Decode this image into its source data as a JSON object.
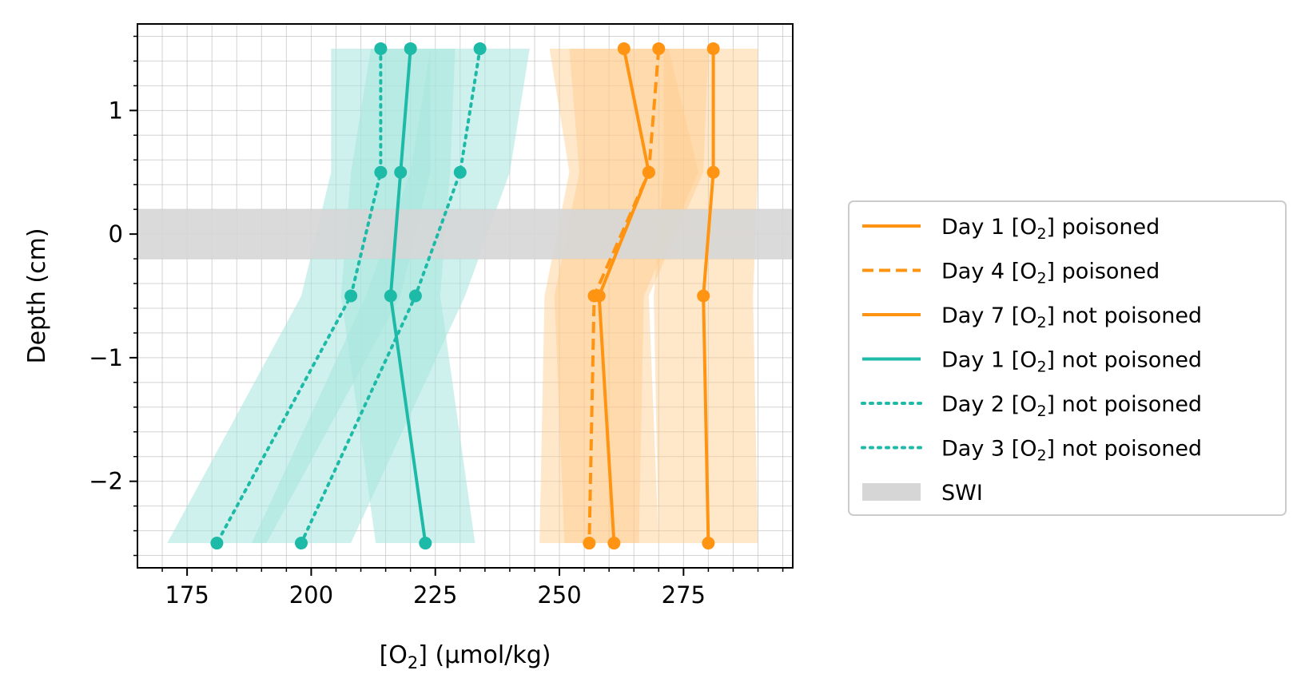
{
  "chart_data": {
    "type": "line",
    "xlabel_prefix": "[O",
    "xlabel_sub": "2",
    "xlabel_suffix": "] (µmol/kg)",
    "ylabel": "Depth (cm)",
    "xlim": [
      165,
      297
    ],
    "ylim": [
      -2.7,
      1.7
    ],
    "xticks": [
      175,
      200,
      225,
      250,
      275
    ],
    "xtick_labels": [
      "175",
      "200",
      "225",
      "250",
      "275"
    ],
    "yticks": [
      -2,
      -1,
      0,
      1
    ],
    "ytick_labels": [
      "−2",
      "−1",
      "0",
      "1"
    ],
    "grid": true,
    "legend_position": "right",
    "depths": [
      1.5,
      0.5,
      -0.5,
      -2.5
    ],
    "colors": {
      "orange": "#ff9412",
      "teal": "#1dbaa8",
      "swi": "#d6d6d6"
    },
    "swi_band": {
      "label": "SWI",
      "y0": -0.2,
      "y1": 0.2
    },
    "series": [
      {
        "name_prefix": "Day 1 [O",
        "name_sub": "2",
        "name_suffix": "] poisoned",
        "color": "orange",
        "dash": "solid",
        "x": [
          263,
          268,
          258,
          261
        ],
        "band_low": [
          248,
          252,
          247,
          246
        ],
        "band_high": [
          272,
          278,
          267,
          266
        ]
      },
      {
        "name_prefix": "Day 4 [O",
        "name_sub": "2",
        "name_suffix": "] poisoned",
        "color": "orange",
        "dash": "dashed",
        "x": [
          270,
          268,
          257,
          256
        ],
        "band_low": [
          252,
          254,
          249,
          251
        ],
        "band_high": [
          280,
          279,
          268,
          270
        ]
      },
      {
        "name_prefix": "Day 7 [O",
        "name_sub": "2",
        "name_suffix": "] not poisoned",
        "color": "orange",
        "dash": "solid",
        "x": [
          281,
          281,
          279,
          280
        ],
        "band_low": [
          271,
          271,
          269,
          270
        ],
        "band_high": [
          290,
          290,
          289,
          290
        ]
      },
      {
        "name_prefix": "Day 1 [O",
        "name_sub": "2",
        "name_suffix": "] not poisoned",
        "color": "teal",
        "dash": "solid",
        "x": [
          220,
          218,
          216,
          223
        ],
        "band_low": [
          212,
          208,
          206,
          213
        ],
        "band_high": [
          229,
          228,
          226,
          233
        ]
      },
      {
        "name_prefix": "Day 2 [O",
        "name_sub": "2",
        "name_suffix": "] not poisoned",
        "color": "teal",
        "dash": "dotted",
        "x": [
          214,
          214,
          208,
          181
        ],
        "band_low": [
          204,
          204,
          198,
          171
        ],
        "band_high": [
          224,
          224,
          218,
          191
        ]
      },
      {
        "name_prefix": "Day 3 [O",
        "name_sub": "2",
        "name_suffix": "] not poisoned",
        "color": "teal",
        "dash": "dotted",
        "x": [
          234,
          230,
          221,
          198
        ],
        "band_low": [
          224,
          220,
          211,
          188
        ],
        "band_high": [
          244,
          240,
          231,
          208
        ]
      }
    ]
  }
}
